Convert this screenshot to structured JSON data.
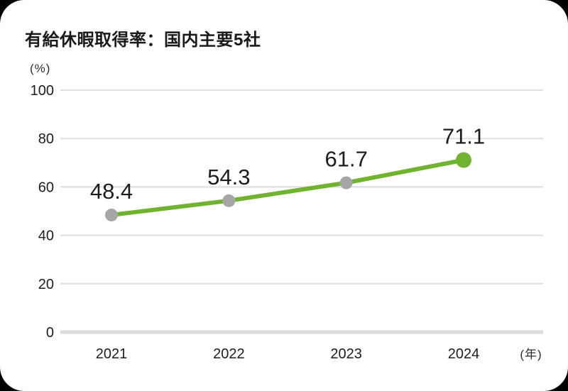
{
  "page": {
    "background_color": "#000000",
    "card_color": "#ffffff"
  },
  "header": {
    "title": "有給休暇取得率：国内主要5社"
  },
  "chart_data": {
    "type": "line",
    "title": "有給休暇取得率：国内主要5社",
    "categories": [
      "2021",
      "2022",
      "2023",
      "2024"
    ],
    "values": [
      48.4,
      54.3,
      61.7,
      71.1
    ],
    "data_labels": [
      "48.4",
      "54.3",
      "61.7",
      "71.1"
    ],
    "series": [
      {
        "name": "有給休暇取得率",
        "values": [
          48.4,
          54.3,
          61.7,
          71.1
        ]
      }
    ],
    "xlabel": "",
    "ylabel": "",
    "y_axis": {
      "unit": "(%)",
      "ticks": [
        0,
        20,
        40,
        60,
        80,
        100
      ],
      "range": [
        0,
        100
      ]
    },
    "x_axis": {
      "unit": "(年)",
      "ticks": [
        "2021",
        "2022",
        "2023",
        "2024"
      ]
    },
    "grid": true,
    "legend_position": "none",
    "colors": {
      "line": "#6fb32e",
      "point": "#a6a6a6",
      "point_last": "#6fb32e",
      "gridline": "#dedede",
      "baseline": "#dcdcdc",
      "text": "#1d1d1d"
    }
  }
}
